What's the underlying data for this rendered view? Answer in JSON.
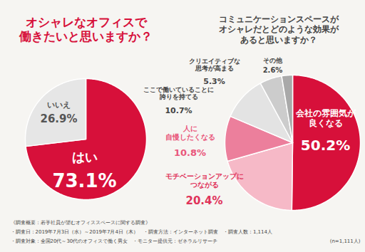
{
  "chart_data": [
    {
      "type": "pie",
      "title": "オシャレなオフィスで\n働きたいと思いますか？",
      "categories": [
        "はい",
        "いいえ"
      ],
      "values": [
        73.1,
        26.9
      ],
      "value_labels": [
        "73.1%",
        "26.9%"
      ],
      "colors": [
        "#d7103a",
        "#e6e6e6"
      ],
      "data_labels": true
    },
    {
      "type": "pie",
      "title": "コミュニケーションスペースが\nオシャレだとどのような効果が\nあると思いますか？",
      "categories": [
        "会社の雰囲気が\n良くなる",
        "モチベーションアップに\nつながる",
        "人に\n自慢したくなる",
        "ここで働いていることに\n誇りを持てる",
        "クリエイティブな\n思考が高まる",
        "その他"
      ],
      "values": [
        50.2,
        20.4,
        10.8,
        10.7,
        5.3,
        2.6
      ],
      "value_labels": [
        "50.2%",
        "20.4%",
        "10.8%",
        "10.7%",
        "5.3%",
        "2.6%"
      ],
      "colors": [
        "#d7103a",
        "#f6b9c7",
        "#ec7f9c",
        "#e3e3e3",
        "#cccccc",
        "#a9a9a9"
      ],
      "data_labels": true
    }
  ],
  "notes": [
    "《調査概要：若手社員が望むオフィススペースに関する調査》",
    "・調査日：2019年7月3日（水）～2019年7月4日（木）　・調査方法：インターネット調査　・調査人数：1,114人",
    "・調査対象：全国20代～30代のオフィスで働く男女　・モニター提供元：ゼネラルリサーチ"
  ],
  "sample": "(n=1,111人)"
}
